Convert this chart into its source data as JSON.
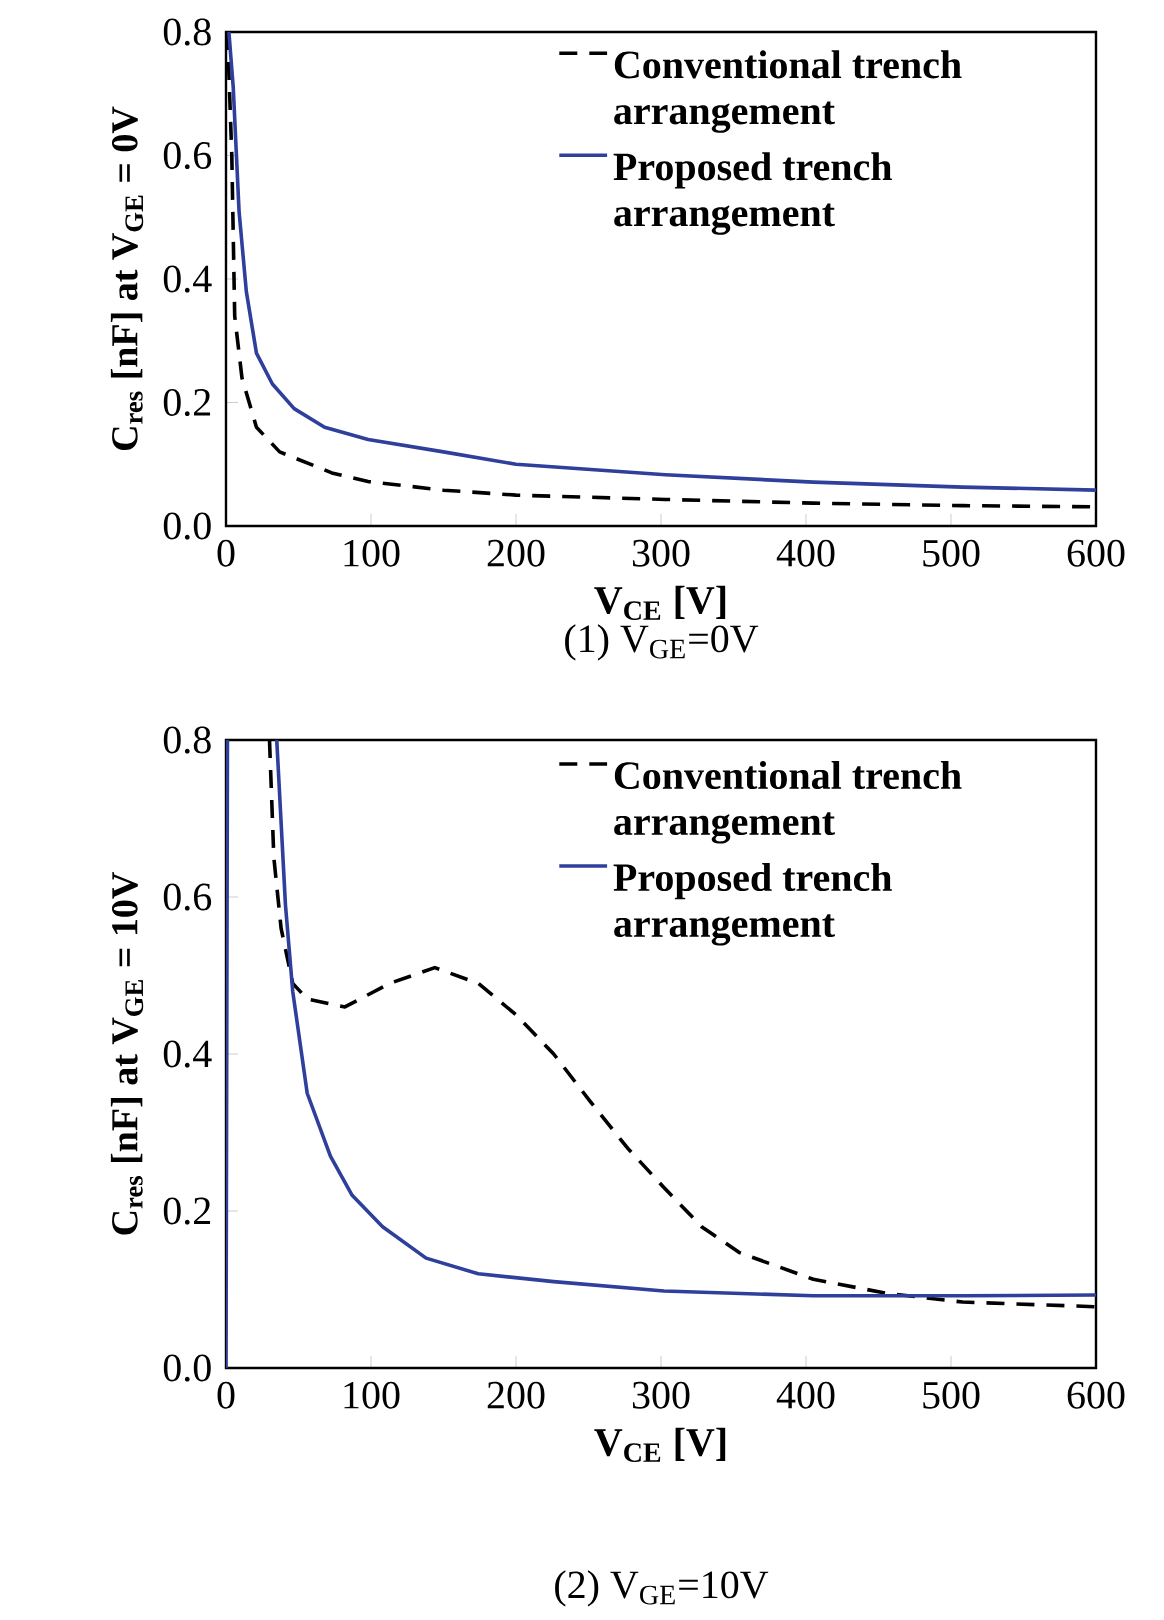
{
  "chart_data": [
    {
      "type": "line",
      "xlabel": "V$_{CE}$ [V]",
      "ylabel": "C$_{res}$ [nF] at V$_{GE}$ = 0V",
      "xlim": [
        0,
        600
      ],
      "ylim": [
        0,
        0.8
      ],
      "xticks": [
        0,
        100,
        200,
        300,
        400,
        500,
        600
      ],
      "yticks": [
        {
          "value": 0,
          "label": "0.0"
        },
        {
          "value": 0.2,
          "label": "0.2"
        },
        {
          "value": 0.4,
          "label": "0.4"
        },
        {
          "value": 0.6,
          "label": "0.6"
        },
        {
          "value": 0.8,
          "label": "0.8"
        }
      ],
      "legend": "top right",
      "marker": "none",
      "annotations": [
        "(1) V$_{GE}$=0V"
      ],
      "series": [
        {
          "name": "Conventional trench arrangement",
          "color": "#000000",
          "line_style": "dashed",
          "x": [
            1,
            4,
            6,
            11,
            16,
            21,
            37,
            73,
            98,
            150,
            200,
            303,
            405,
            508,
            600
          ],
          "values": [
            0.8,
            0.6,
            0.34,
            0.24,
            0.2,
            0.16,
            0.12,
            0.086,
            0.072,
            0.058,
            0.05,
            0.043,
            0.037,
            0.033,
            0.031
          ]
        },
        {
          "name": "Proposed trench arrangement",
          "color": "#2e3f9c",
          "line_style": "solid",
          "x": [
            2,
            5,
            9,
            14,
            21,
            32,
            47,
            68,
            98,
            150,
            200,
            303,
            405,
            508,
            600
          ],
          "values": [
            0.8,
            0.71,
            0.51,
            0.38,
            0.28,
            0.23,
            0.19,
            0.16,
            0.14,
            0.12,
            0.1,
            0.083,
            0.071,
            0.063,
            0.058
          ]
        }
      ]
    },
    {
      "type": "line",
      "xlabel": "V$_{CE}$ [V]",
      "ylabel": "C$_{res}$ [nF] at V$_{GE}$ = 10V",
      "xlim": [
        0,
        600
      ],
      "ylim": [
        0,
        0.8
      ],
      "xticks": [
        0,
        100,
        200,
        300,
        400,
        500,
        600
      ],
      "yticks": [
        {
          "value": 0,
          "label": "0.0"
        },
        {
          "value": 0.2,
          "label": "0.2"
        },
        {
          "value": 0.4,
          "label": "0.4"
        },
        {
          "value": 0.6,
          "label": "0.6"
        },
        {
          "value": 0.8,
          "label": "0.8"
        }
      ],
      "legend": "top right",
      "marker": "none",
      "annotations": [
        "(2) V$_{GE}$=10V"
      ],
      "series": [
        {
          "name": "Conventional trench arrangement",
          "color": "#000000",
          "line_style": "dashed",
          "x": [
            30,
            33,
            38,
            46,
            56,
            82,
            113,
            144,
            174,
            200,
            226,
            251,
            277,
            302,
            328,
            354,
            405,
            456,
            508,
            600
          ],
          "values": [
            0.8,
            0.65,
            0.56,
            0.49,
            0.47,
            0.46,
            0.49,
            0.51,
            0.49,
            0.45,
            0.4,
            0.34,
            0.28,
            0.23,
            0.18,
            0.147,
            0.113,
            0.095,
            0.084,
            0.078
          ]
        },
        {
          "name": "Proposed trench arrangement",
          "color": "#2e3f9c",
          "line_style": "solid",
          "x": [
            0,
            1,
            20,
            35,
            41,
            46,
            56,
            72,
            87,
            108,
            138,
            174,
            226,
            302,
            405,
            508,
            600
          ],
          "values": [
            0,
            0.8,
            null,
            0.8,
            0.59,
            0.48,
            0.35,
            0.27,
            0.22,
            0.18,
            0.14,
            0.12,
            0.11,
            0.098,
            0.092,
            0.092,
            0.093
          ]
        }
      ]
    }
  ]
}
